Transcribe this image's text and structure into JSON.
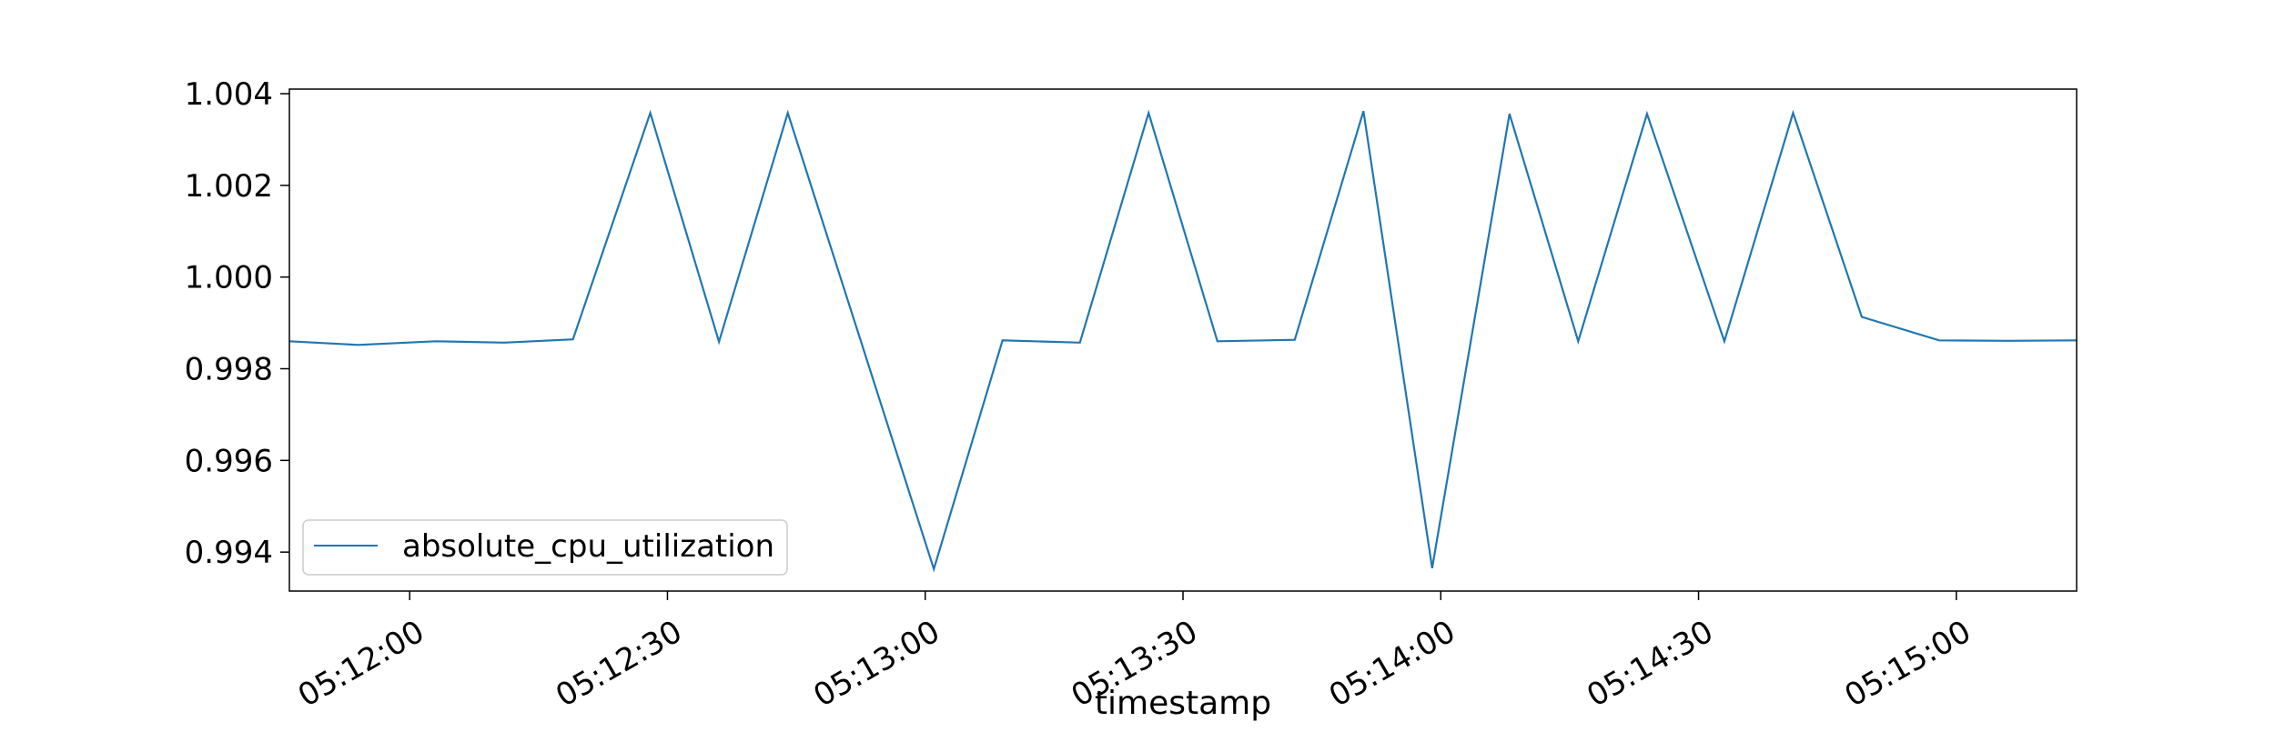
{
  "chart_data": {
    "type": "line",
    "xlabel": "timestamp",
    "ylabel": "",
    "title": "",
    "x_start": "05:11:46",
    "x_end": "05:15:14",
    "xlim": [
      "05:11:46",
      "05:15:14"
    ],
    "ylim": [
      0.99315,
      1.0041
    ],
    "x_ticks": [
      "05:12:00",
      "05:12:30",
      "05:13:00",
      "05:13:30",
      "05:14:00",
      "05:14:30",
      "05:15:00"
    ],
    "y_ticks": [
      "0.994",
      "0.996",
      "0.998",
      "1.000",
      "1.002",
      "1.004"
    ],
    "grid": false,
    "legend_position": "lower-left",
    "series": [
      {
        "name": "absolute_cpu_utilization",
        "color": "#1f77b4",
        "x": [
          "05:11:46",
          "05:11:54",
          "05:12:03",
          "05:12:11",
          "05:12:19",
          "05:12:28",
          "05:12:36",
          "05:12:44",
          "05:13:01",
          "05:13:09",
          "05:13:18",
          "05:13:26",
          "05:13:34",
          "05:13:43",
          "05:13:51",
          "05:13:59",
          "05:14:08",
          "05:14:16",
          "05:14:24",
          "05:14:33",
          "05:14:41",
          "05:14:49",
          "05:14:58",
          "05:15:06",
          "05:15:14"
        ],
        "values": [
          0.9986,
          0.99852,
          0.9986,
          0.99857,
          0.99864,
          1.00358,
          0.99859,
          1.00358,
          0.99363,
          0.99862,
          0.99857,
          1.00358,
          0.9986,
          0.99863,
          1.00362,
          0.99365,
          1.00356,
          0.9986,
          1.00356,
          0.9986,
          1.00358,
          0.99913,
          0.99862,
          0.99861,
          0.99862
        ]
      }
    ]
  }
}
